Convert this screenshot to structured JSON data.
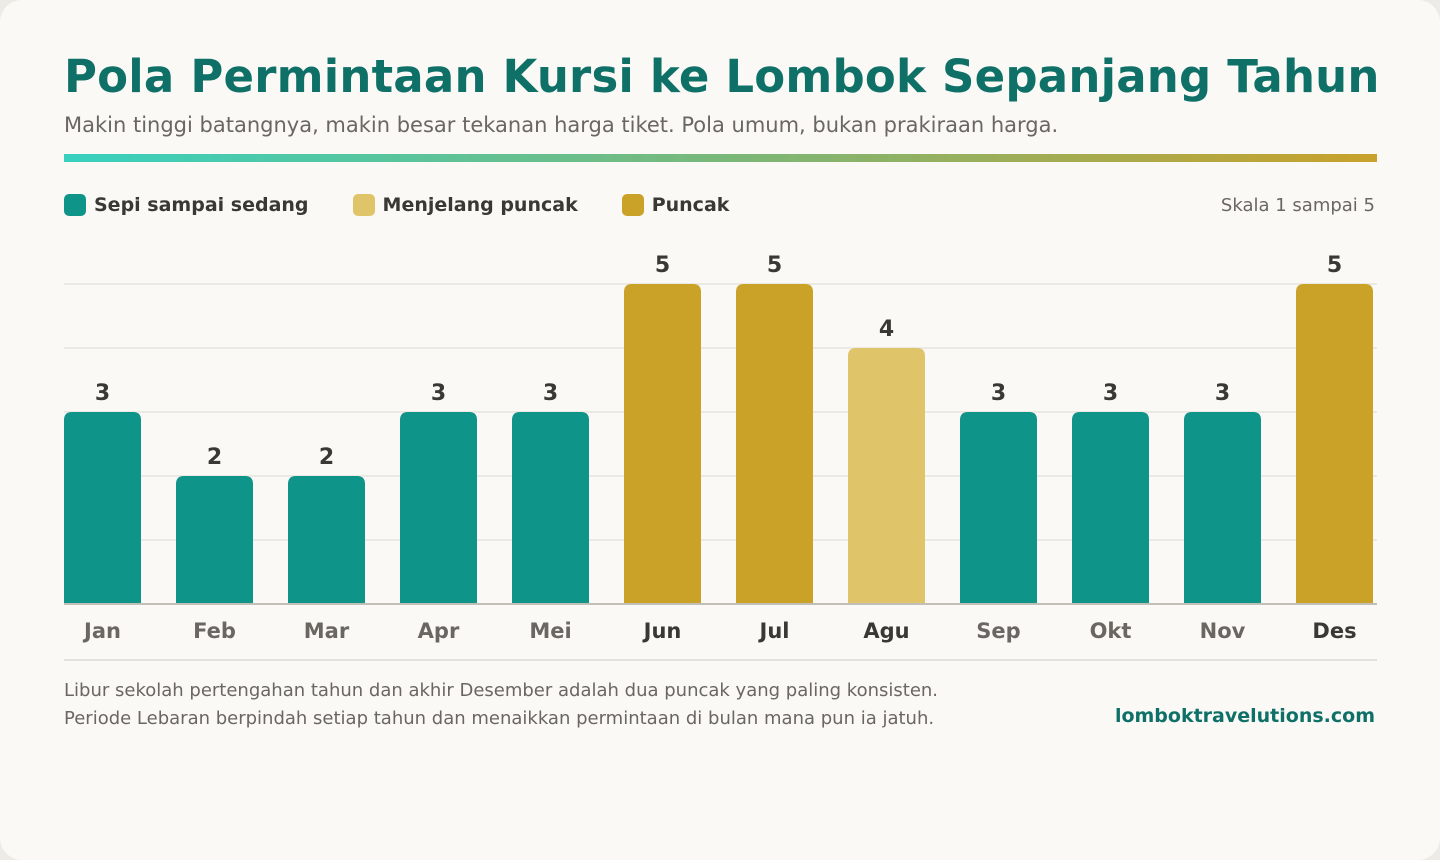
{
  "header": {
    "title": "Pola Permintaan Kursi ke Lombok Sepanjang Tahun",
    "subtitle": "Makin tinggi batangnya, makin besar tekanan harga tiket. Pola umum, bukan prakiraan harga."
  },
  "legend": {
    "items": [
      {
        "label": "Sepi sampai sedang",
        "color": "#0e9488"
      },
      {
        "label": "Menjelang puncak",
        "color": "#e0c46a"
      },
      {
        "label": "Puncak",
        "color": "#c9a227"
      }
    ],
    "scale_note": "Skala 1 sampai 5"
  },
  "chart_data": {
    "type": "bar",
    "categories": [
      "Jan",
      "Feb",
      "Mar",
      "Apr",
      "Mei",
      "Jun",
      "Jul",
      "Agu",
      "Sep",
      "Okt",
      "Nov",
      "Des"
    ],
    "values": [
      3,
      2,
      2,
      3,
      3,
      5,
      5,
      4,
      3,
      3,
      3,
      5
    ],
    "levels": [
      "Sepi sampai sedang",
      "Sepi sampai sedang",
      "Sepi sampai sedang",
      "Sepi sampai sedang",
      "Sepi sampai sedang",
      "Puncak",
      "Puncak",
      "Menjelang puncak",
      "Sepi sampai sedang",
      "Sepi sampai sedang",
      "Sepi sampai sedang",
      "Puncak"
    ],
    "ylim": [
      0,
      5
    ],
    "grid": true,
    "legend_position": "top-left",
    "colors": {
      "Sepi sampai sedang": "#0e9488",
      "Menjelang puncak": "#e0c46a",
      "Puncak": "#c9a227"
    }
  },
  "footer": {
    "notes": [
      "Libur sekolah pertengahan tahun dan akhir Desember adalah dua puncak yang paling konsisten.",
      "Periode Lebaran berpindah setiap tahun dan menaikkan permintaan di bulan mana pun ia jatuh."
    ],
    "site": "lomboktravelutions.com"
  }
}
